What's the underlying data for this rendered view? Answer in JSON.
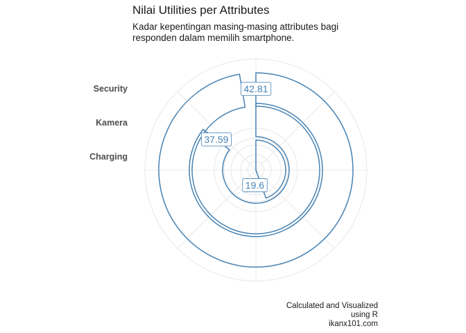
{
  "chart_data": {
    "type": "bar",
    "coord": "polar",
    "title": "Nilai Utilities per Attributes",
    "subtitle_lines": [
      "Kadar kepentingan masing-masing attributes bagi",
      "responden dalam memilih smartphone."
    ],
    "categories": [
      "Security",
      "Kamera",
      "Charging"
    ],
    "values": [
      42.81,
      37.59,
      19.6
    ],
    "data_labels": [
      "42.81",
      "37.59",
      "19.6"
    ],
    "theta_max": 44,
    "grid": true,
    "caption_lines": [
      "Calculated and Visualized",
      "using R",
      "ikanx101.com"
    ],
    "colors": {
      "bar_outline": "#4682B4",
      "grid": "#ebebeb",
      "label_text": "#4682B4",
      "category_text": "#4d4d4d"
    }
  }
}
